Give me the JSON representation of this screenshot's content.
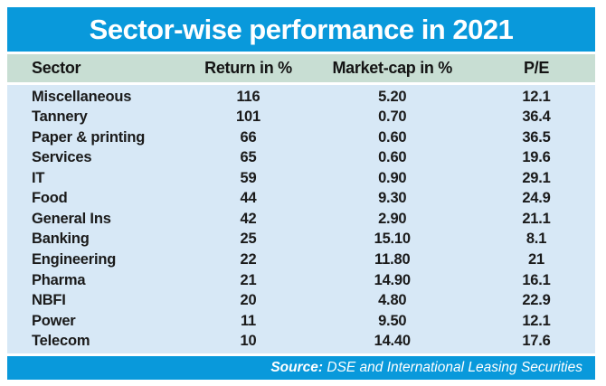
{
  "title_bar": {
    "title": "Sector-wise performance in 2021"
  },
  "chart_data": {
    "type": "table",
    "title": "Sector-wise performance in 2021",
    "columns": [
      "Sector",
      "Return in %",
      "Market-cap in %",
      "P/E"
    ],
    "rows": [
      [
        "Miscellaneous",
        "116",
        "5.20",
        "12.1"
      ],
      [
        "Tannery",
        "101",
        "0.70",
        "36.4"
      ],
      [
        "Paper & printing",
        "66",
        "0.60",
        "36.5"
      ],
      [
        "Services",
        "65",
        "0.60",
        "19.6"
      ],
      [
        "IT",
        "59",
        "0.90",
        "29.1"
      ],
      [
        "Food",
        "44",
        "9.30",
        "24.9"
      ],
      [
        "General Ins",
        "42",
        "2.90",
        "21.1"
      ],
      [
        "Banking",
        "25",
        "15.10",
        "8.1"
      ],
      [
        "Engineering",
        "22",
        "11.80",
        "21"
      ],
      [
        "Pharma",
        "21",
        "14.90",
        "16.1"
      ],
      [
        "NBFI",
        "20",
        "4.80",
        "22.9"
      ],
      [
        "Power",
        "11",
        "9.50",
        "12.1"
      ],
      [
        "Telecom",
        "10",
        "14.40",
        "17.6"
      ]
    ],
    "source": "Source: DSE and International Leasing Securities"
  },
  "footer": {
    "label": "Source:",
    "text": " DSE and International Leasing Securities"
  },
  "colors": {
    "accent_blue": "#0999DB",
    "header_green": "#C8DED3",
    "body_blue": "#D7E8F6",
    "title_text": "#FFFFFF",
    "table_text": "#1A1A1A"
  }
}
